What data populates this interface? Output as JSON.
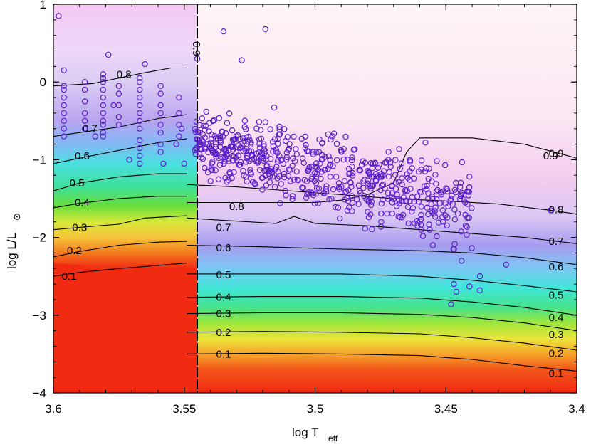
{
  "chart_data": {
    "type": "scatter",
    "description_free": true,
    "xlabel_main": "log T",
    "xlabel_sub": "eff",
    "ylabel_main": "log L/L",
    "ylabel_sub": "⊙",
    "xlim": [
      3.6,
      3.4
    ],
    "ylim": [
      -4,
      1
    ],
    "x_ticks": [
      3.6,
      3.55,
      3.5,
      3.45,
      3.4
    ],
    "x_tick_labels": [
      "3.6",
      "3.55",
      "3.5",
      "3.45",
      "3.4"
    ],
    "y_ticks": [
      1,
      0,
      -1,
      -2,
      -3,
      -4
    ],
    "y_tick_labels": [
      "1",
      "0",
      "−1",
      "−2",
      "−3",
      "−4"
    ],
    "boundary_x": 3.549,
    "boundary_label": "0.9",
    "colors": {
      "marker": "#5a1fc8",
      "contour": "#000000"
    },
    "contours_left": [
      {
        "label": "0.8",
        "label_x": 3.573,
        "label_y": 0.1,
        "points": [
          [
            3.6,
            -0.05
          ],
          [
            3.585,
            -0.02
          ],
          [
            3.575,
            0.05
          ],
          [
            3.565,
            0.12
          ],
          [
            3.555,
            0.18
          ],
          [
            3.549,
            0.18
          ]
        ]
      },
      {
        "label": "0.7",
        "label_x": 3.586,
        "label_y": -0.6,
        "points": [
          [
            3.6,
            -0.7
          ],
          [
            3.59,
            -0.65
          ],
          [
            3.575,
            -0.58
          ],
          [
            3.56,
            -0.47
          ],
          [
            3.549,
            -0.42
          ]
        ]
      },
      {
        "label": "0.6",
        "label_x": 3.589,
        "label_y": -0.95,
        "points": [
          [
            3.6,
            -1.05
          ],
          [
            3.59,
            -0.98
          ],
          [
            3.575,
            -0.88
          ],
          [
            3.56,
            -0.78
          ],
          [
            3.549,
            -0.73
          ]
        ]
      },
      {
        "label": "0.5",
        "label_x": 3.591,
        "label_y": -1.3,
        "points": [
          [
            3.6,
            -1.4
          ],
          [
            3.59,
            -1.3
          ],
          [
            3.575,
            -1.22
          ],
          [
            3.56,
            -1.18
          ],
          [
            3.549,
            -1.18
          ]
        ]
      },
      {
        "label": "0.4",
        "label_x": 3.589,
        "label_y": -1.55,
        "points": [
          [
            3.6,
            -1.62
          ],
          [
            3.59,
            -1.56
          ],
          [
            3.575,
            -1.5
          ],
          [
            3.56,
            -1.47
          ],
          [
            3.549,
            -1.47
          ]
        ]
      },
      {
        "label": "0.3",
        "label_x": 3.59,
        "label_y": -1.87,
        "points": [
          [
            3.6,
            -1.9
          ],
          [
            3.59,
            -1.87
          ],
          [
            3.575,
            -1.83
          ],
          [
            3.565,
            -1.75
          ],
          [
            3.549,
            -1.72
          ]
        ]
      },
      {
        "label": "0.2",
        "label_x": 3.592,
        "label_y": -2.17,
        "points": [
          [
            3.6,
            -2.25
          ],
          [
            3.59,
            -2.18
          ],
          [
            3.575,
            -2.1
          ],
          [
            3.56,
            -2.06
          ],
          [
            3.549,
            -2.05
          ]
        ]
      },
      {
        "label": "0.1",
        "label_x": 3.594,
        "label_y": -2.5,
        "points": [
          [
            3.6,
            -2.5
          ],
          [
            3.59,
            -2.45
          ],
          [
            3.575,
            -2.4
          ],
          [
            3.56,
            -2.36
          ],
          [
            3.549,
            -2.33
          ]
        ]
      }
    ],
    "contours_right": [
      {
        "label": "0.9",
        "label_x": 3.41,
        "label_y": -0.95,
        "points": [
          [
            3.549,
            -1.55
          ],
          [
            3.52,
            -1.55
          ],
          [
            3.5,
            -1.55
          ],
          [
            3.49,
            -1.52
          ],
          [
            3.48,
            -1.45
          ],
          [
            3.47,
            -1.3
          ],
          [
            3.465,
            -0.9
          ],
          [
            3.46,
            -0.72
          ],
          [
            3.44,
            -0.72
          ],
          [
            3.42,
            -0.8
          ],
          [
            3.4,
            -0.98
          ]
        ]
      },
      {
        "label": "0.8",
        "label_x": 3.53,
        "label_y": -1.6,
        "points": [
          [
            3.549,
            -1.32
          ],
          [
            3.53,
            -1.35
          ],
          [
            3.51,
            -1.4
          ],
          [
            3.49,
            -1.45
          ],
          [
            3.47,
            -1.5
          ],
          [
            3.45,
            -1.53
          ],
          [
            3.43,
            -1.57
          ],
          [
            3.41,
            -1.65
          ],
          [
            3.4,
            -1.7
          ]
        ]
      },
      {
        "label": "0.7",
        "label_x": 3.535,
        "label_y": -1.87,
        "points": [
          [
            3.549,
            -1.75
          ],
          [
            3.535,
            -1.78
          ],
          [
            3.515,
            -1.82
          ],
          [
            3.512,
            -1.78
          ],
          [
            3.508,
            -1.73
          ],
          [
            3.5,
            -1.82
          ],
          [
            3.48,
            -1.85
          ],
          [
            3.46,
            -1.9
          ],
          [
            3.44,
            -1.95
          ],
          [
            3.42,
            -2.0
          ],
          [
            3.4,
            -2.08
          ]
        ]
      },
      {
        "label": "0.6",
        "label_x": 3.535,
        "label_y": -2.13,
        "points": [
          [
            3.549,
            -2.1
          ],
          [
            3.52,
            -2.12
          ],
          [
            3.49,
            -2.15
          ],
          [
            3.46,
            -2.17
          ],
          [
            3.44,
            -2.2
          ],
          [
            3.42,
            -2.26
          ],
          [
            3.4,
            -2.35
          ]
        ]
      },
      {
        "label": "0.5",
        "label_x": 3.535,
        "label_y": -2.48,
        "points": [
          [
            3.549,
            -2.47
          ],
          [
            3.52,
            -2.47
          ],
          [
            3.49,
            -2.47
          ],
          [
            3.46,
            -2.5
          ],
          [
            3.44,
            -2.55
          ],
          [
            3.42,
            -2.62
          ],
          [
            3.4,
            -2.7
          ]
        ]
      },
      {
        "label": "0.4",
        "label_x": 3.535,
        "label_y": -2.77,
        "points": [
          [
            3.549,
            -2.77
          ],
          [
            3.52,
            -2.76
          ],
          [
            3.49,
            -2.76
          ],
          [
            3.46,
            -2.78
          ],
          [
            3.44,
            -2.83
          ],
          [
            3.42,
            -2.9
          ],
          [
            3.4,
            -3.0
          ]
        ]
      },
      {
        "label": "0.3",
        "label_x": 3.535,
        "label_y": -2.98,
        "points": [
          [
            3.549,
            -2.98
          ],
          [
            3.52,
            -2.97
          ],
          [
            3.49,
            -2.97
          ],
          [
            3.46,
            -2.99
          ],
          [
            3.44,
            -3.03
          ],
          [
            3.42,
            -3.1
          ],
          [
            3.4,
            -3.2
          ]
        ]
      },
      {
        "label": "0.2",
        "label_x": 3.535,
        "label_y": -3.22,
        "points": [
          [
            3.549,
            -3.22
          ],
          [
            3.52,
            -3.21
          ],
          [
            3.49,
            -3.22
          ],
          [
            3.46,
            -3.24
          ],
          [
            3.44,
            -3.29
          ],
          [
            3.42,
            -3.36
          ],
          [
            3.4,
            -3.45
          ]
        ]
      },
      {
        "label": "0.1",
        "label_x": 3.535,
        "label_y": -3.5,
        "points": [
          [
            3.549,
            -3.5
          ],
          [
            3.52,
            -3.49
          ],
          [
            3.49,
            -3.5
          ],
          [
            3.46,
            -3.52
          ],
          [
            3.44,
            -3.57
          ],
          [
            3.42,
            -3.65
          ],
          [
            3.4,
            -3.72
          ]
        ]
      }
    ],
    "right_edge_labels": [
      {
        "label": "0.9",
        "y": -0.92
      },
      {
        "label": "0.8",
        "y": -1.64
      },
      {
        "label": "0.7",
        "y": -2.05
      },
      {
        "label": "0.6",
        "y": -2.38
      },
      {
        "label": "0.5",
        "y": -2.74
      },
      {
        "label": "0.4",
        "y": -3.03
      },
      {
        "label": "0.3",
        "y": -3.25
      },
      {
        "label": "0.2",
        "y": -3.49
      },
      {
        "label": "0.1",
        "y": -3.75
      }
    ],
    "scatter_columns": [
      {
        "x": 3.596,
        "y": [
          -0.05,
          -0.2,
          -0.3,
          -0.4,
          -0.5,
          -0.6,
          -0.7,
          -0.1,
          0.15
        ]
      },
      {
        "x": 3.588,
        "y": [
          0.0,
          -0.1,
          -0.25,
          -0.4,
          -0.5,
          -0.6
        ]
      },
      {
        "x": 3.581,
        "y": [
          0.1,
          0.05,
          0.0,
          -0.1,
          -0.2,
          -0.3,
          -0.4,
          -0.5,
          -0.55,
          -0.65,
          -0.7
        ]
      },
      {
        "x": 3.575,
        "y": [
          -0.05,
          -0.15,
          -0.3,
          -0.45,
          -0.55
        ]
      },
      {
        "x": 3.567,
        "y": [
          0.05,
          0.0,
          -0.1,
          -0.2,
          -0.3,
          -0.4,
          -0.5,
          -0.6,
          -0.75,
          -0.85,
          -0.95,
          -1.05
        ]
      },
      {
        "x": 3.559,
        "y": [
          -0.05,
          -0.15,
          -0.3,
          -0.4,
          -0.55,
          -0.65,
          -0.8,
          -0.9
        ]
      },
      {
        "x": 3.552,
        "y": [
          -0.2,
          -0.4,
          -0.55,
          -0.7
        ]
      }
    ],
    "scatter_extra": [
      [
        3.598,
        0.85
      ],
      [
        3.579,
        0.35
      ],
      [
        3.565,
        0.23
      ],
      [
        3.584,
        -0.7
      ],
      [
        3.577,
        -0.3
      ],
      [
        3.571,
        -1.0
      ],
      [
        3.558,
        -1.05
      ],
      [
        3.551,
        -0.6
      ],
      [
        3.553,
        -0.8
      ],
      [
        3.55,
        -1.05
      ],
      [
        3.545,
        0.3
      ],
      [
        3.535,
        0.65
      ],
      [
        3.528,
        0.28
      ],
      [
        3.519,
        0.68
      ],
      [
        3.41,
        -1.65
      ],
      [
        3.427,
        -2.35
      ],
      [
        3.437,
        -2.5
      ],
      [
        3.447,
        -2.6
      ],
      [
        3.446,
        -2.7
      ],
      [
        3.455,
        -2.1
      ],
      [
        3.444,
        -2.3
      ],
      [
        3.437,
        -2.68
      ],
      [
        3.448,
        -2.86
      ],
      [
        3.441,
        -2.63
      ]
    ],
    "scatter_cloud": {
      "x_range": [
        3.546,
        3.44
      ],
      "center_y": -0.75,
      "n": 620,
      "seed": 7
    }
  }
}
